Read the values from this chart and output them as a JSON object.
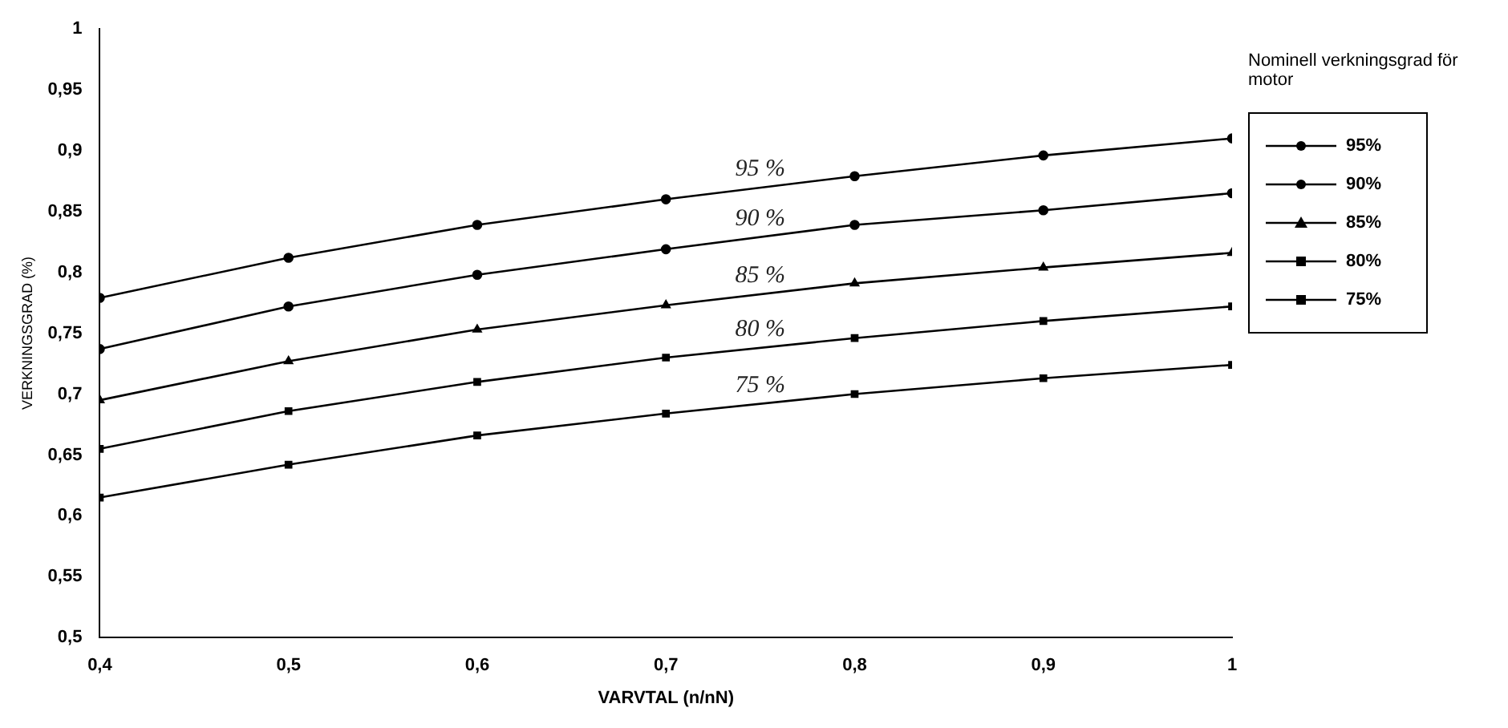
{
  "chart_data": {
    "type": "line",
    "xlabel": "VARVTAL (n/nN)",
    "ylabel": "VERKNINGSGRAD (%)",
    "legend_title": "Nominell verkningsgrad för motor",
    "x": [
      0.4,
      0.5,
      0.6,
      0.7,
      0.8,
      0.9,
      1
    ],
    "series": [
      {
        "name": "95%",
        "color": "#000000",
        "marker": "circle",
        "values": [
          0.779,
          0.812,
          0.839,
          0.86,
          0.879,
          0.896,
          0.91
        ]
      },
      {
        "name": "90%",
        "color": "#000000",
        "marker": "circle",
        "values": [
          0.737,
          0.772,
          0.798,
          0.819,
          0.839,
          0.851,
          0.865
        ]
      },
      {
        "name": "85%",
        "color": "#000000",
        "marker": "triangle",
        "values": [
          0.695,
          0.727,
          0.753,
          0.773,
          0.791,
          0.804,
          0.816
        ]
      },
      {
        "name": "80%",
        "color": "#000000",
        "marker": "square",
        "values": [
          0.655,
          0.686,
          0.71,
          0.73,
          0.746,
          0.76,
          0.772
        ]
      },
      {
        "name": "75%",
        "color": "#000000",
        "marker": "square",
        "values": [
          0.615,
          0.642,
          0.666,
          0.684,
          0.7,
          0.713,
          0.724
        ]
      }
    ],
    "xlim": [
      0.4,
      1
    ],
    "xticks": [
      {
        "value": 0.4,
        "label": "0,4"
      },
      {
        "value": 0.5,
        "label": "0,5"
      },
      {
        "value": 0.6,
        "label": "0,6"
      },
      {
        "value": 0.7,
        "label": "0,7"
      },
      {
        "value": 0.8,
        "label": "0,8"
      },
      {
        "value": 0.9,
        "label": "0,9"
      },
      1
    ],
    "ylim": [
      0.5,
      1
    ],
    "yticks": [
      {
        "value": 0.5,
        "label": "0,5"
      },
      {
        "value": 0.55,
        "label": "0,55"
      },
      {
        "value": 0.6,
        "label": "0,6"
      },
      {
        "value": 0.65,
        "label": "0,65"
      },
      {
        "value": 0.7,
        "label": "0,7"
      },
      {
        "value": 0.75,
        "label": "0,75"
      },
      {
        "value": 0.8,
        "label": "0,8"
      },
      {
        "value": 0.85,
        "label": "0,85"
      },
      {
        "value": 0.9,
        "label": "0,9"
      },
      {
        "value": 0.95,
        "label": "0,95"
      },
      1
    ],
    "annotations": [
      "95 %",
      "90 %",
      "85 %",
      "80 %",
      "75 %"
    ],
    "grid": false,
    "legend": "right",
    "line_style": "solid"
  }
}
